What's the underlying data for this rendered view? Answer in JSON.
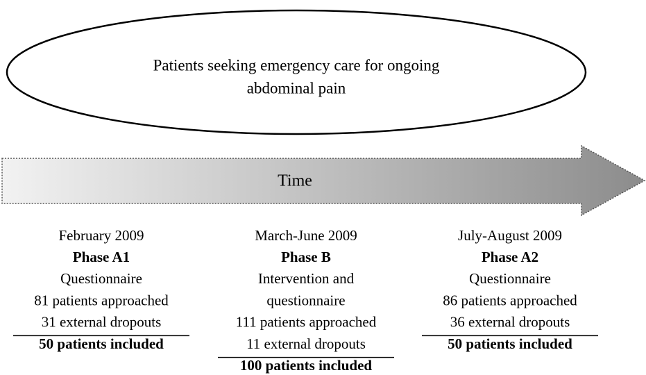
{
  "population": {
    "lines": [
      "Patients seeking emergency care for ongoing",
      "abdominal pain"
    ]
  },
  "timeline": {
    "label": "Time"
  },
  "phases": [
    {
      "date": "February 2009",
      "phase": "Phase A1",
      "activity": [
        "Questionnaire"
      ],
      "approached": "81 patients approached",
      "dropouts": "31 external dropouts",
      "included": "50 patients included"
    },
    {
      "date": "March-June 2009",
      "phase": "Phase B",
      "activity": [
        "Intervention and",
        "questionnaire"
      ],
      "approached": "111 patients approached",
      "dropouts": "11 external dropouts",
      "included": "100 patients included"
    },
    {
      "date": "July-August 2009",
      "phase": "Phase A2",
      "activity": [
        "Questionnaire"
      ],
      "approached": "86 patients approached",
      "dropouts": "36 external dropouts",
      "included": "50 patients included"
    }
  ]
}
